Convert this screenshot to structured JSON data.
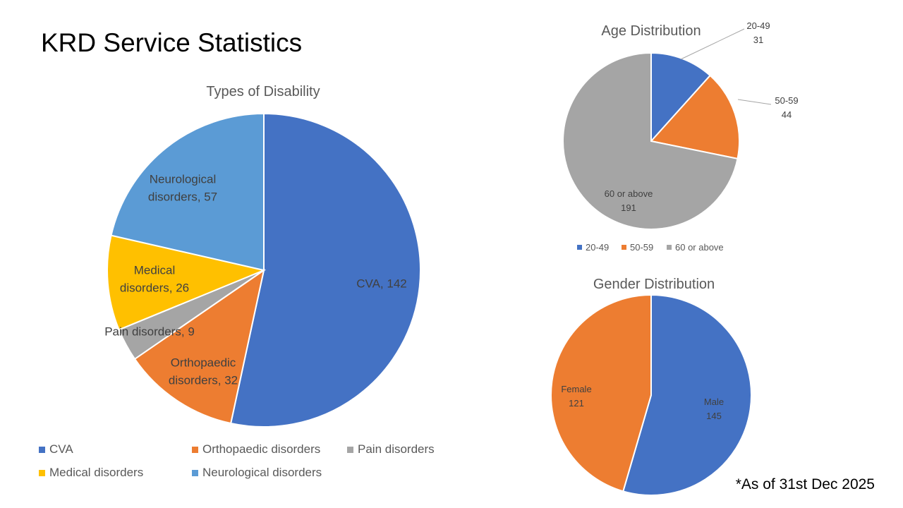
{
  "slide": {
    "title": "KRD Service Statistics",
    "footnote": "*As of 31st Dec 2025"
  },
  "chart_data": [
    {
      "type": "pie",
      "title": "Types of Disability",
      "categories": [
        "CVA",
        "Orthopaedic disorders",
        "Pain disorders",
        "Medical disorders",
        "Neurological disorders"
      ],
      "values": [
        142,
        32,
        9,
        26,
        57
      ],
      "colors": [
        "#4472C4",
        "#ED7D31",
        "#A5A5A5",
        "#FFC000",
        "#5B9BD5"
      ],
      "data_label_format": "category, value",
      "legend": "bottom"
    },
    {
      "type": "pie",
      "title": "Age Distribution",
      "categories": [
        "20-49",
        "50-59",
        "60 or above"
      ],
      "values": [
        31,
        44,
        191
      ],
      "colors": [
        "#4472C4",
        "#ED7D31",
        "#A5A5A5"
      ],
      "data_label_format": "category newline value",
      "legend": "bottom"
    },
    {
      "type": "pie",
      "title": "Gender Distribution",
      "categories": [
        "Male",
        "Female"
      ],
      "values": [
        145,
        121
      ],
      "colors": [
        "#4472C4",
        "#ED7D31"
      ],
      "data_label_format": "category newline value",
      "legend": "none"
    }
  ]
}
